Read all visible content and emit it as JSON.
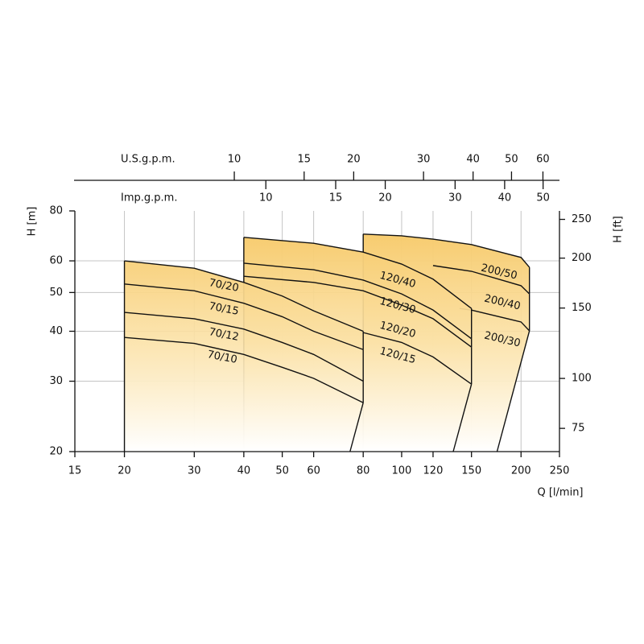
{
  "chart_data": {
    "type": "pump-curve",
    "xlabel": "Q [l/min]",
    "ylabel": "H [m]",
    "y2label": "H [ft]",
    "log_x": true,
    "log_y": true,
    "grid": true,
    "xlim": [
      15,
      250
    ],
    "xticks": [
      15,
      20,
      30,
      40,
      50,
      60,
      80,
      100,
      120,
      150,
      200,
      250
    ],
    "ylim": [
      20,
      80
    ],
    "yticks": [
      20,
      30,
      40,
      50,
      60,
      80
    ],
    "y2lim": [
      65.6,
      262.5
    ],
    "y2ticks": [
      75,
      100,
      150,
      200,
      250
    ],
    "top_axes": [
      {
        "label": "U.S.g.p.m.",
        "xlim": [
          3.963,
          66.05
        ],
        "xticks": [
          10,
          15,
          20,
          30,
          40,
          50,
          60
        ]
      },
      {
        "label": "Imp.g.p.m.",
        "xlim": [
          3.3,
          54.99
        ],
        "xticks": [
          10,
          15,
          20,
          30,
          40,
          50
        ]
      }
    ],
    "fill_color": "#f6c660",
    "line_color": "#111111",
    "families": [
      {
        "right_edge_x": 74.1,
        "series": [
          {
            "name": "70/20",
            "color": "#111111",
            "x": [
              20,
              30,
              40,
              50,
              60,
              80
            ],
            "values": [
              60,
              57.5,
              53,
              49,
              45,
              40
            ]
          },
          {
            "name": "70/15",
            "color": "#111111",
            "x": [
              20,
              30,
              40,
              50,
              60,
              80
            ],
            "values": [
              52.5,
              50.5,
              47,
              43.5,
              40,
              36
            ]
          },
          {
            "name": "70/12",
            "color": "#111111",
            "x": [
              20,
              30,
              40,
              50,
              60,
              80
            ],
            "values": [
              44.6,
              43,
              40.5,
              37.5,
              35,
              30
            ]
          },
          {
            "name": "70/10",
            "color": "#111111",
            "x": [
              20,
              30,
              40,
              50,
              60,
              80
            ],
            "values": [
              38.6,
              37.3,
              35,
              32.5,
              30.5,
              26.5
            ]
          }
        ]
      },
      {
        "right_edge_x": 134.9,
        "series": [
          {
            "name": "120/40",
            "color": "#111111",
            "x": [
              40,
              60,
              80,
              100,
              120,
              150
            ],
            "values": [
              68.7,
              66.4,
              63.1,
              58.9,
              54,
              45.6
            ]
          },
          {
            "name": "120/30",
            "color": "#111111",
            "x": [
              40,
              60,
              80,
              100,
              120,
              150
            ],
            "values": [
              59.2,
              57,
              53.7,
              49.6,
              45.2,
              38.3
            ]
          },
          {
            "name": "120/20",
            "color": "#111111",
            "x": [
              40,
              60,
              80,
              100,
              120,
              150
            ],
            "values": [
              54.9,
              53,
              50.5,
              46.5,
              43,
              36.5
            ]
          },
          {
            "name": "120/15",
            "color": "#111111",
            "x": [
              80,
              100,
              120,
              150
            ],
            "values": [
              39.7,
              37.5,
              34.5,
              29.5
            ]
          }
        ]
      },
      {
        "right_edge_x": 174,
        "series": [
          {
            "name": "200/50",
            "color": "#111111",
            "x": [
              80,
              100,
              120,
              150,
              200,
              210
            ],
            "values": [
              70,
              69.3,
              68,
              65.9,
              61.2,
              57.8
            ]
          },
          {
            "name": "200/40",
            "color": "#111111",
            "x": [
              120,
              150,
              200,
              210
            ],
            "values": [
              58.4,
              56.5,
              52,
              49.6
            ]
          },
          {
            "name": "200/30",
            "color": "#111111",
            "x": [
              140,
              150,
              200,
              210
            ],
            "values": [
              45.6,
              45.2,
              42.2,
              40.1
            ]
          }
        ]
      }
    ]
  }
}
